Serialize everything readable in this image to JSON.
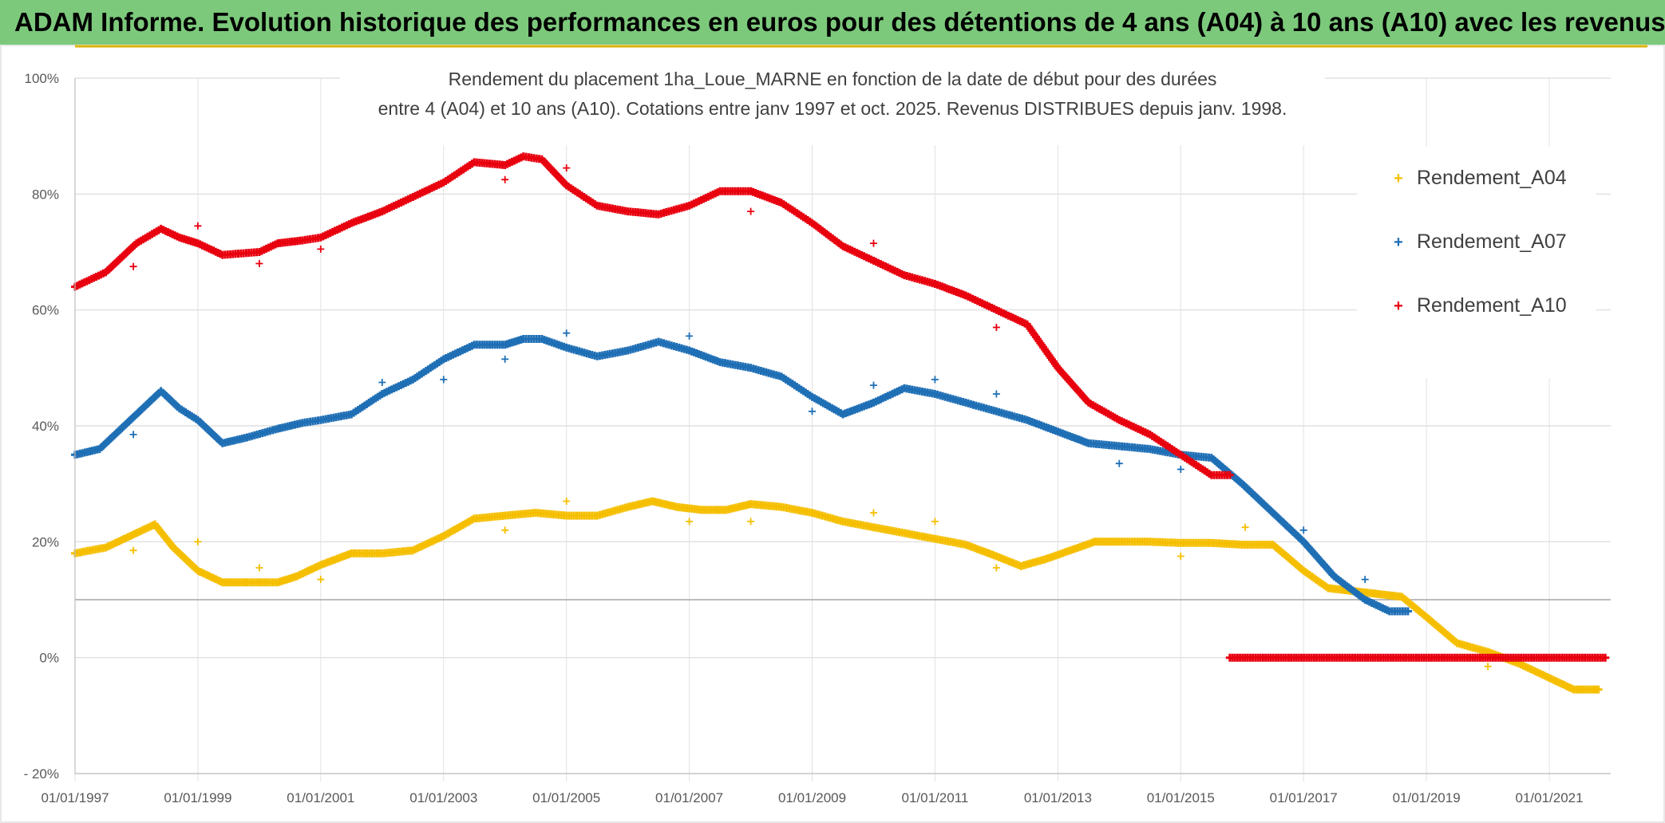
{
  "header": {
    "title": "ADAM Informe. Evolution historique des performances en euros pour des détentions de 4 ans (A04) à 10 ans (A10) avec les revenus connus distribués"
  },
  "chart_data": {
    "type": "scatter",
    "title_lines": [
      "Rendement du placement 1ha_Loue_MARNE en fonction de la date de début pour des durées",
      "entre 4 (A04) et 10 ans (A10). Cotations entre janv 1997 et oct. 2025. Revenus DISTRIBUES depuis janv. 1998."
    ],
    "xlabel": "",
    "ylabel": "",
    "x_range": [
      1997.0,
      2022.0
    ],
    "y_range": [
      -20,
      100
    ],
    "x_ticks": [
      {
        "value": 1997,
        "label": "01/01/1997"
      },
      {
        "value": 1999,
        "label": "01/01/1999"
      },
      {
        "value": 2001,
        "label": "01/01/2001"
      },
      {
        "value": 2003,
        "label": "01/01/2003"
      },
      {
        "value": 2005,
        "label": "01/01/2005"
      },
      {
        "value": 2007,
        "label": "01/01/2007"
      },
      {
        "value": 2009,
        "label": "01/01/2009"
      },
      {
        "value": 2011,
        "label": "01/01/2011"
      },
      {
        "value": 2013,
        "label": "01/01/2013"
      },
      {
        "value": 2015,
        "label": "01/01/2015"
      },
      {
        "value": 2017,
        "label": "01/01/2017"
      },
      {
        "value": 2019,
        "label": "01/01/2019"
      },
      {
        "value": 2021,
        "label": "01/01/2021"
      }
    ],
    "y_ticks": [
      {
        "value": 100,
        "label": "100%"
      },
      {
        "value": 80,
        "label": "80%"
      },
      {
        "value": 60,
        "label": "60%"
      },
      {
        "value": 40,
        "label": "40%"
      },
      {
        "value": 20,
        "label": "20%"
      },
      {
        "value": 0,
        "label": "0%"
      },
      {
        "value": -20,
        "label": "- 20%"
      }
    ],
    "reference_line": 10,
    "grid": "horizontal",
    "legend_position": "right",
    "series": [
      {
        "name": "Rendement_A04",
        "color": "#f5bf00",
        "points": [
          [
            1997.0,
            18
          ],
          [
            1997.5,
            19
          ],
          [
            1997.9,
            21
          ],
          [
            1998.3,
            23
          ],
          [
            1998.6,
            19
          ],
          [
            1999.0,
            15
          ],
          [
            1999.4,
            13
          ],
          [
            1999.8,
            13
          ],
          [
            2000.3,
            13
          ],
          [
            2000.6,
            14
          ],
          [
            2001.0,
            16
          ],
          [
            2001.5,
            18
          ],
          [
            2002.0,
            18
          ],
          [
            2002.5,
            18.5
          ],
          [
            2003.0,
            21
          ],
          [
            2003.5,
            24
          ],
          [
            2004.0,
            24.5
          ],
          [
            2004.5,
            25
          ],
          [
            2005.0,
            24.5
          ],
          [
            2005.5,
            24.5
          ],
          [
            2006.0,
            26
          ],
          [
            2006.4,
            27
          ],
          [
            2006.8,
            26
          ],
          [
            2007.2,
            25.5
          ],
          [
            2007.6,
            25.5
          ],
          [
            2008.0,
            26.5
          ],
          [
            2008.5,
            26
          ],
          [
            2009.0,
            25
          ],
          [
            2009.5,
            23.5
          ],
          [
            2010.0,
            22.5
          ],
          [
            2010.5,
            21.5
          ],
          [
            2011.0,
            20.5
          ],
          [
            2011.5,
            19.5
          ],
          [
            2012.0,
            17.5
          ],
          [
            2012.4,
            15.8
          ],
          [
            2012.8,
            17
          ],
          [
            2013.2,
            18.5
          ],
          [
            2013.6,
            20
          ],
          [
            2014.0,
            20
          ],
          [
            2014.5,
            20
          ],
          [
            2015.0,
            19.8
          ],
          [
            2015.5,
            19.8
          ],
          [
            2016.0,
            19.5
          ],
          [
            2016.5,
            19.5
          ],
          [
            2017.0,
            15
          ],
          [
            2017.4,
            12
          ],
          [
            2017.8,
            11.5
          ],
          [
            2018.2,
            11
          ],
          [
            2018.6,
            10.5
          ],
          [
            2019.0,
            7
          ],
          [
            2019.5,
            2.5
          ],
          [
            2020.0,
            1
          ],
          [
            2020.5,
            -1
          ],
          [
            2021.0,
            -3.5
          ],
          [
            2021.4,
            -5.5
          ],
          [
            2021.8,
            -5.5
          ]
        ],
        "outliers": [
          [
            1997.95,
            18.5
          ],
          [
            1999.0,
            20
          ],
          [
            2000.0,
            15.5
          ],
          [
            2001.0,
            13.5
          ],
          [
            2004.0,
            22
          ],
          [
            2005.0,
            27
          ],
          [
            2007.0,
            23.5
          ],
          [
            2008.0,
            23.5
          ],
          [
            2010.0,
            25
          ],
          [
            2011.0,
            23.5
          ],
          [
            2012.0,
            15.5
          ],
          [
            2015.0,
            17.5
          ],
          [
            2016.05,
            22.5
          ],
          [
            2020.0,
            -1.5
          ]
        ]
      },
      {
        "name": "Rendement_A07",
        "color": "#1f6fb5",
        "points": [
          [
            1997.0,
            35
          ],
          [
            1997.4,
            36
          ],
          [
            1998.0,
            42
          ],
          [
            1998.4,
            46
          ],
          [
            1998.7,
            43
          ],
          [
            1999.0,
            41
          ],
          [
            1999.4,
            37
          ],
          [
            1999.8,
            38
          ],
          [
            2000.3,
            39.5
          ],
          [
            2000.7,
            40.5
          ],
          [
            2001.0,
            41
          ],
          [
            2001.5,
            42
          ],
          [
            2002.0,
            45.5
          ],
          [
            2002.5,
            48
          ],
          [
            2003.0,
            51.5
          ],
          [
            2003.5,
            54
          ],
          [
            2004.0,
            54
          ],
          [
            2004.3,
            55
          ],
          [
            2004.6,
            55
          ],
          [
            2005.0,
            53.5
          ],
          [
            2005.5,
            52
          ],
          [
            2006.0,
            53
          ],
          [
            2006.5,
            54.5
          ],
          [
            2007.0,
            53
          ],
          [
            2007.5,
            51
          ],
          [
            2008.0,
            50
          ],
          [
            2008.5,
            48.5
          ],
          [
            2009.0,
            45
          ],
          [
            2009.5,
            42
          ],
          [
            2010.0,
            44
          ],
          [
            2010.5,
            46.5
          ],
          [
            2011.0,
            45.5
          ],
          [
            2011.5,
            44
          ],
          [
            2012.0,
            42.5
          ],
          [
            2012.5,
            41
          ],
          [
            2013.0,
            39
          ],
          [
            2013.5,
            37
          ],
          [
            2014.0,
            36.5
          ],
          [
            2014.5,
            36
          ],
          [
            2015.0,
            35
          ],
          [
            2015.5,
            34.5
          ],
          [
            2016.0,
            30
          ],
          [
            2016.5,
            25
          ],
          [
            2017.0,
            20
          ],
          [
            2017.5,
            14
          ],
          [
            2018.0,
            10
          ],
          [
            2018.4,
            8
          ],
          [
            2018.7,
            8
          ]
        ],
        "outliers": [
          [
            1997.95,
            38.5
          ],
          [
            2002.0,
            47.5
          ],
          [
            2003.0,
            48
          ],
          [
            2004.0,
            51.5
          ],
          [
            2005.0,
            56
          ],
          [
            2007.0,
            55.5
          ],
          [
            2009.0,
            42.5
          ],
          [
            2010.0,
            47
          ],
          [
            2011.0,
            48
          ],
          [
            2012.0,
            45.5
          ],
          [
            2014.0,
            33.5
          ],
          [
            2015.0,
            32.5
          ],
          [
            2017.0,
            22
          ],
          [
            2018.0,
            13.5
          ]
        ]
      },
      {
        "name": "Rendement_A10",
        "color": "#e8000f",
        "points": [
          [
            1997.0,
            64
          ],
          [
            1997.5,
            66.5
          ],
          [
            1998.0,
            71.5
          ],
          [
            1998.4,
            74
          ],
          [
            1998.7,
            72.5
          ],
          [
            1999.0,
            71.5
          ],
          [
            1999.4,
            69.5
          ],
          [
            2000.0,
            70
          ],
          [
            2000.3,
            71.5
          ],
          [
            2000.7,
            72
          ],
          [
            2001.0,
            72.5
          ],
          [
            2001.5,
            75
          ],
          [
            2002.0,
            77
          ],
          [
            2002.5,
            79.5
          ],
          [
            2003.0,
            82
          ],
          [
            2003.5,
            85.5
          ],
          [
            2004.0,
            85
          ],
          [
            2004.3,
            86.5
          ],
          [
            2004.6,
            86
          ],
          [
            2005.0,
            81.5
          ],
          [
            2005.5,
            78
          ],
          [
            2006.0,
            77
          ],
          [
            2006.5,
            76.5
          ],
          [
            2007.0,
            78
          ],
          [
            2007.5,
            80.5
          ],
          [
            2008.0,
            80.5
          ],
          [
            2008.5,
            78.5
          ],
          [
            2009.0,
            75
          ],
          [
            2009.5,
            71
          ],
          [
            2010.0,
            68.5
          ],
          [
            2010.5,
            66
          ],
          [
            2011.0,
            64.5
          ],
          [
            2011.5,
            62.5
          ],
          [
            2012.0,
            60
          ],
          [
            2012.5,
            57.5
          ],
          [
            2013.0,
            50
          ],
          [
            2013.5,
            44
          ],
          [
            2014.0,
            41
          ],
          [
            2014.5,
            38.5
          ],
          [
            2015.0,
            35
          ],
          [
            2015.5,
            31.5
          ],
          [
            2015.8,
            31.5
          ]
        ],
        "outliers": [
          [
            1997.95,
            67.5
          ],
          [
            1999.0,
            74.5
          ],
          [
            2000.0,
            68
          ],
          [
            2001.0,
            70.5
          ],
          [
            2004.0,
            82.5
          ],
          [
            2005.0,
            84.5
          ],
          [
            2008.0,
            77
          ],
          [
            2010.0,
            71.5
          ],
          [
            2012.0,
            57
          ]
        ],
        "zero_segment": [
          2015.8,
          2021.95
        ]
      }
    ]
  }
}
